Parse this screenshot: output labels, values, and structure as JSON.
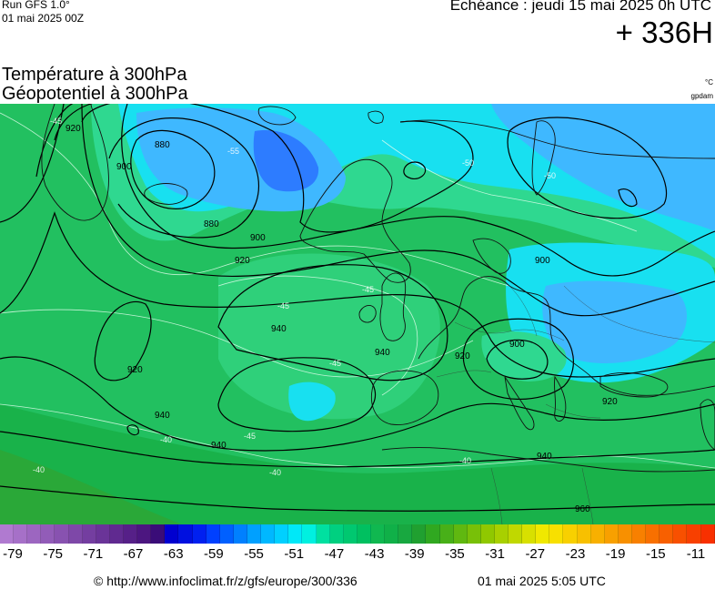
{
  "header": {
    "run_label": "Run GFS 1.0°",
    "run_date": "01 mai 2025 00Z",
    "echeance": "Echéance : jeudi 15 mai 2025 0h UTC",
    "horizon": "+ 336H"
  },
  "titles": {
    "line1": "Température à 300hPa",
    "line2": "Géopotentiel à 300hPa",
    "unit_temp": "°C",
    "unit_geo": "gpdam"
  },
  "map": {
    "temperature_levels": [
      "-55",
      "-50",
      "-45",
      "-40"
    ],
    "geopotential_levels": [
      "880",
      "900",
      "920",
      "940",
      "960"
    ],
    "colors": {
      "land_outline": "#111111",
      "warm_green": "#19b24a",
      "mid_green": "#22c060",
      "cool_green": "#2fd07a",
      "cyan": "#18e0f0",
      "light_blue": "#3fb8ff",
      "deep_blue": "#2d7cff"
    }
  },
  "scale": {
    "colors": [
      "#b07ad0",
      "#a670c8",
      "#9c66c0",
      "#925cb8",
      "#8852b0",
      "#7e48a8",
      "#743ea0",
      "#6a3498",
      "#602a90",
      "#562088",
      "#4c1680",
      "#3a0c78",
      "#0000d0",
      "#0010e0",
      "#0020f0",
      "#0040ff",
      "#0060ff",
      "#0080ff",
      "#00a0ff",
      "#00b8ff",
      "#00d0ff",
      "#00e8f8",
      "#00f0e0",
      "#00e0a0",
      "#00d080",
      "#00c870",
      "#00c060",
      "#10b850",
      "#10b048",
      "#18a840",
      "#20a030",
      "#30a820",
      "#48b018",
      "#60b810",
      "#78c008",
      "#90c800",
      "#a8d000",
      "#c0d800",
      "#d8e000",
      "#f0e800",
      "#f8e000",
      "#f8d000",
      "#f8c000",
      "#f8b000",
      "#f8a000",
      "#f89000",
      "#f88000",
      "#f87000",
      "#f86000",
      "#f85000",
      "#f84000",
      "#f83000"
    ],
    "tick_labels": [
      "-79",
      "-75",
      "-71",
      "-67",
      "-63",
      "-59",
      "-55",
      "-51",
      "-47",
      "-43",
      "-39",
      "-35",
      "-31",
      "-27",
      "-23",
      "-19",
      "-15",
      "-11"
    ]
  },
  "footer": {
    "copyright": "© http://www.infoclimat.fr/z/gfs/europe/300/336",
    "generated": "01 mai 2025  5:05 UTC"
  }
}
